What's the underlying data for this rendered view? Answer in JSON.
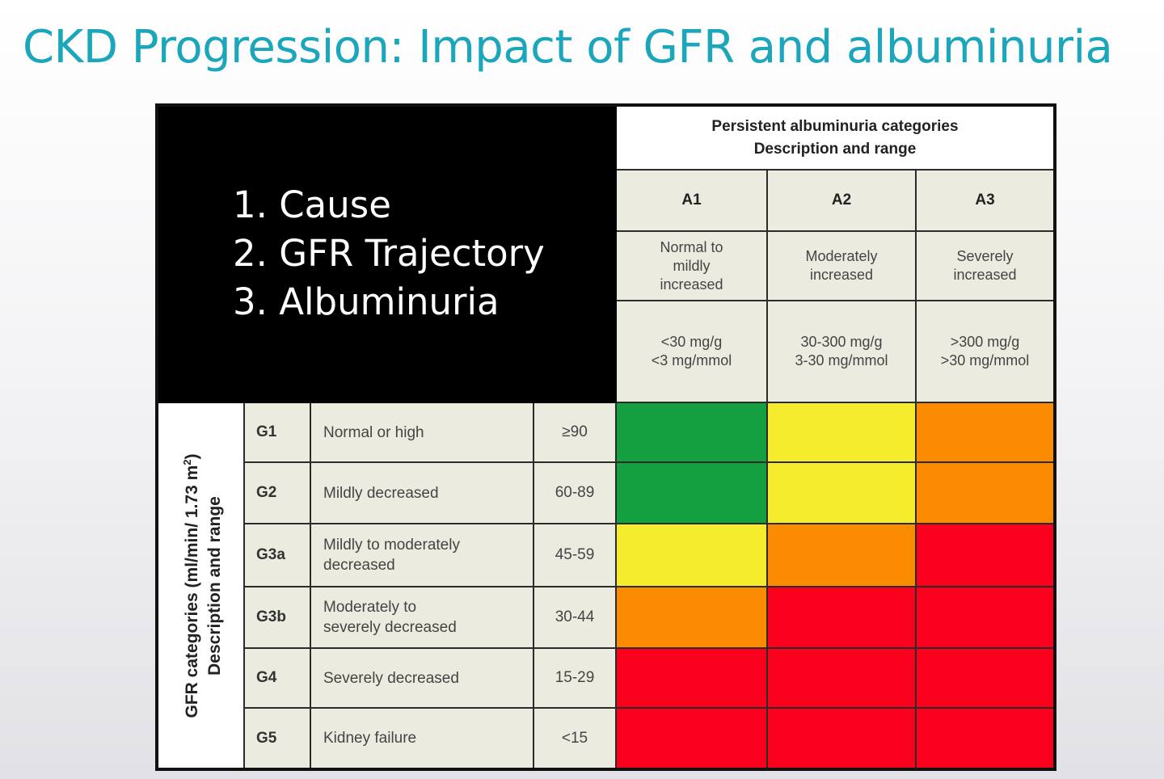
{
  "slide": {
    "title": "CKD Progression: Impact of GFR and albuminuria",
    "points": [
      "1. Cause",
      "2. GFR Trajectory",
      "3. Albuminuria"
    ]
  },
  "albuminuria": {
    "header_line1": "Persistent albuminuria categories",
    "header_line2": "Description and range",
    "categories": [
      {
        "code": "A1",
        "desc_lines": [
          "Normal to",
          "mildly",
          "increased"
        ],
        "range_lines": [
          "<30 mg/g",
          "<3 mg/mmol"
        ]
      },
      {
        "code": "A2",
        "desc_lines": [
          "Moderately",
          "increased"
        ],
        "range_lines": [
          "30-300 mg/g",
          "3-30 mg/mmol"
        ]
      },
      {
        "code": "A3",
        "desc_lines": [
          "Severely",
          "increased"
        ],
        "range_lines": [
          ">300 mg/g",
          ">30 mg/mmol"
        ]
      }
    ]
  },
  "gfr": {
    "axis_line1": "GFR categories (ml/min/ 1.73 m",
    "axis_sup": "2",
    "axis_line1_end": ")",
    "axis_line2": "Description and range",
    "categories": [
      {
        "code": "G1",
        "desc_lines": [
          "Normal or high"
        ],
        "range": "≥90"
      },
      {
        "code": "G2",
        "desc_lines": [
          "Mildly decreased"
        ],
        "range": "60-89"
      },
      {
        "code": "G3a",
        "desc_lines": [
          "Mildly to moderately",
          "decreased"
        ],
        "range": "45-59"
      },
      {
        "code": "G3b",
        "desc_lines": [
          "Moderately to",
          "severely decreased"
        ],
        "range": "30-44"
      },
      {
        "code": "G4",
        "desc_lines": [
          "Severely decreased"
        ],
        "range": "15-29"
      },
      {
        "code": "G5",
        "desc_lines": [
          "Kidney failure"
        ],
        "range": "<15"
      }
    ]
  },
  "risk_colors": {
    "green": "#14a040",
    "yellow": "#f6ec2e",
    "orange": "#fb8b00",
    "red": "#f9001c"
  },
  "risk_grid": [
    [
      "green",
      "yellow",
      "orange"
    ],
    [
      "green",
      "yellow",
      "orange"
    ],
    [
      "yellow",
      "orange",
      "red"
    ],
    [
      "orange",
      "red",
      "red"
    ],
    [
      "red",
      "red",
      "red"
    ],
    [
      "red",
      "red",
      "red"
    ]
  ]
}
